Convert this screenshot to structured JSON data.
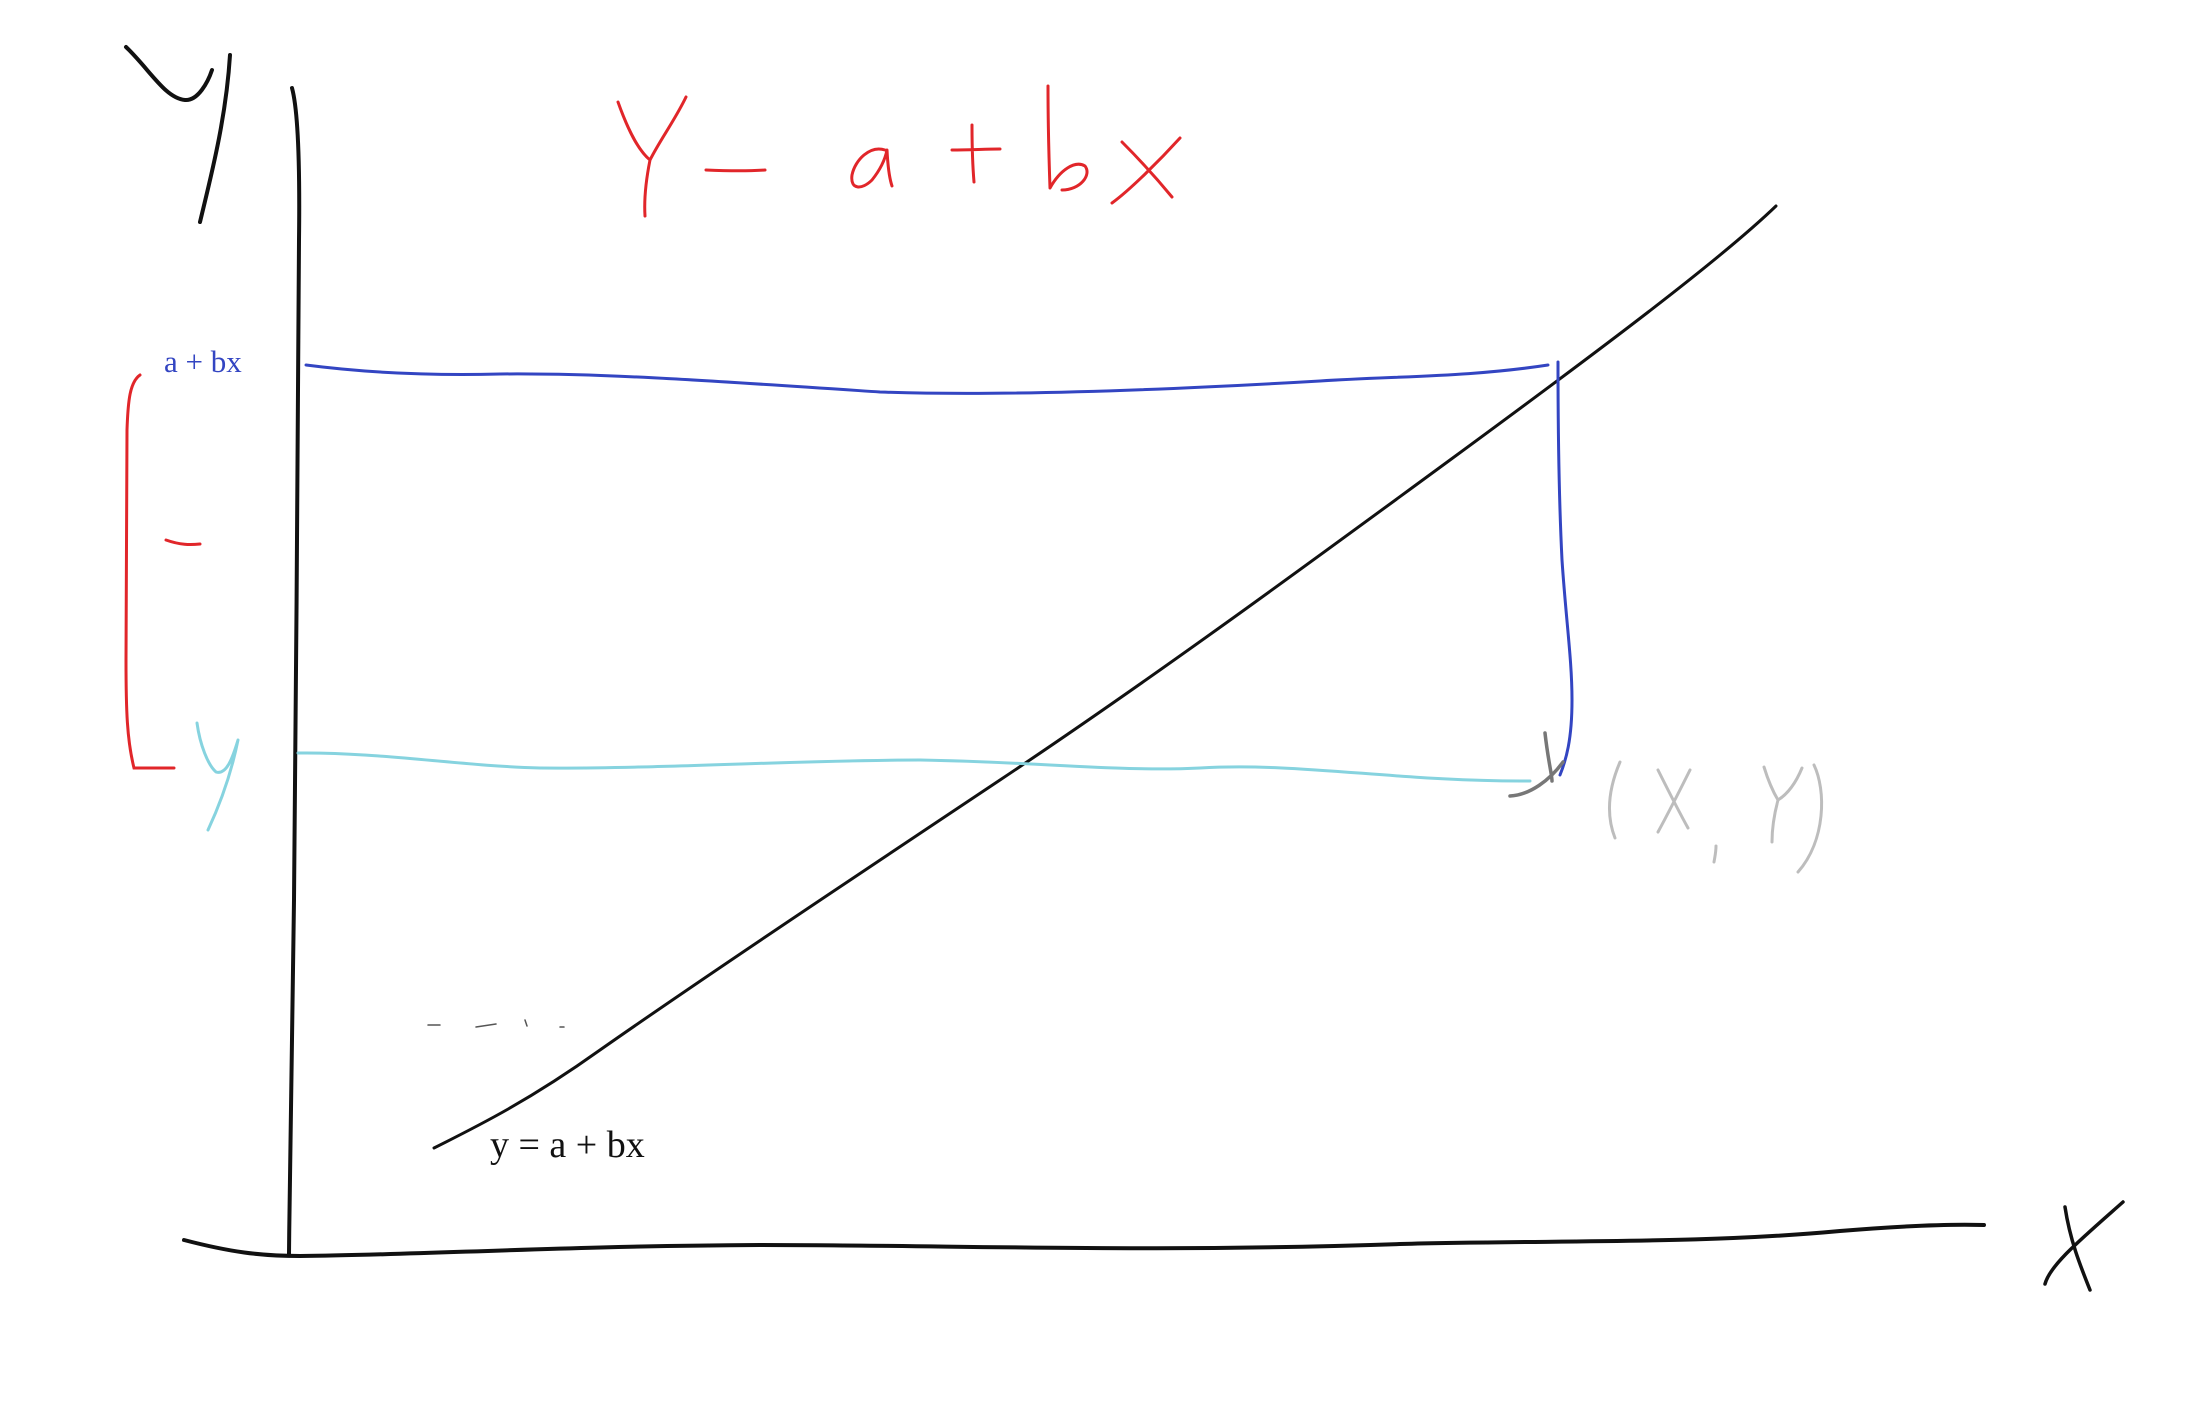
{
  "title": "Y– a+bx",
  "y_axis_label": "Y",
  "x_axis_label": "X",
  "fitted_value_label": "a + bx",
  "observed_value_label": "y",
  "point_label": "(X,Y)",
  "line_label": "y = a + bx",
  "residual_marker": "–",
  "colors": {
    "ink": "#111111",
    "title": "#e1262a",
    "fitted": "#3345c2",
    "observed": "#86d3df",
    "point": "#bdbdbd",
    "residual": "#e1262a",
    "point_mark": "#777777"
  }
}
